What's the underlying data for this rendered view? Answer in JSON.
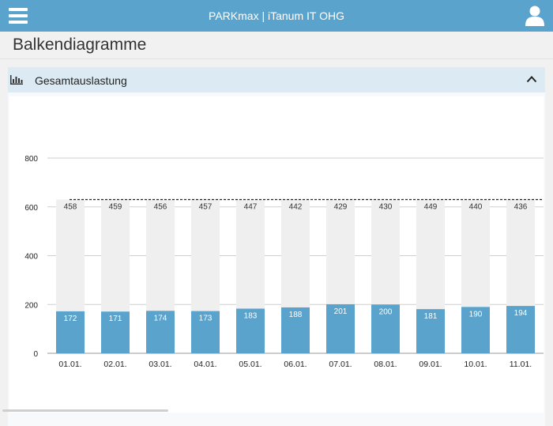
{
  "header": {
    "title": "PARKmax | iTanum IT OHG",
    "menu_icon": "hamburger-menu-icon",
    "user_icon": "user-icon"
  },
  "page": {
    "title": "Balkendiagramme"
  },
  "panel": {
    "title": "Gesamtauslastung",
    "icon": "bar-chart-icon",
    "toggle_icon": "chevron-up-icon"
  },
  "colors": {
    "header_bg": "#5aa3cc",
    "used_bar": "#5aa3cc",
    "free_bar": "#efefef",
    "panel_header_bg": "#dcebf3"
  },
  "chart_data": {
    "type": "bar",
    "stacked": true,
    "categories": [
      "01.01.",
      "02.01.",
      "03.01.",
      "04.01.",
      "05.01.",
      "06.01.",
      "07.01.",
      "08.01.",
      "09.01.",
      "10.01.",
      "11.01."
    ],
    "series": [
      {
        "values": [
          172,
          171,
          174,
          173,
          183,
          188,
          201,
          200,
          181,
          190,
          194
        ]
      },
      {
        "values": [
          458,
          459,
          456,
          457,
          447,
          442,
          429,
          430,
          449,
          440,
          436
        ]
      }
    ],
    "capacity_line": 630,
    "yticks": [
      "0",
      "200",
      "400",
      "600",
      "800"
    ],
    "ylim": [
      0,
      800
    ],
    "grid": true,
    "legend": "none"
  }
}
